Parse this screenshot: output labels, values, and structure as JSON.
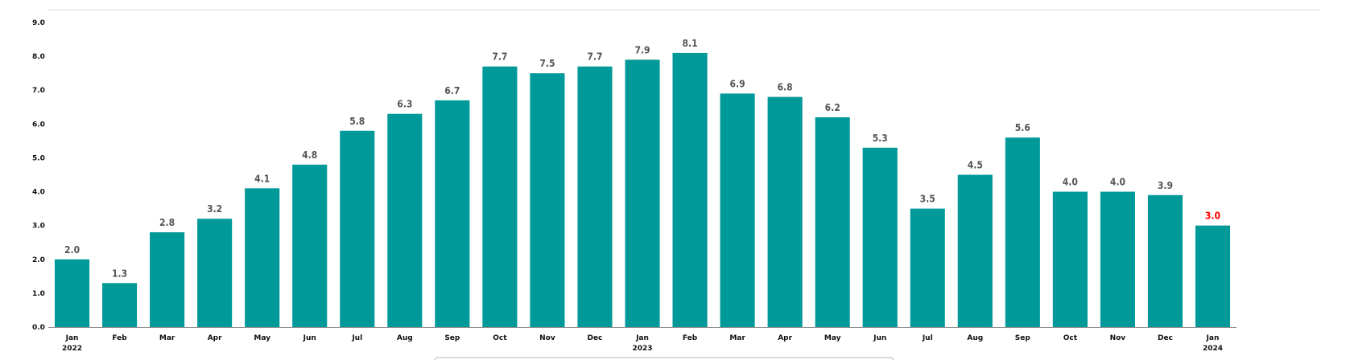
{
  "colors": {
    "bar": "#009999",
    "data_label": "#555555",
    "highlight_label": "#ff0000",
    "axis_line": "#d9d9d9",
    "bottom_axis": "#8c8c8c"
  },
  "chart_data": {
    "type": "bar",
    "title": "",
    "xlabel": "",
    "ylabel": "",
    "ylim": [
      0,
      9
    ],
    "y_ticks": [
      "0.0",
      "1.0",
      "2.0",
      "3.0",
      "4.0",
      "5.0",
      "6.0",
      "7.0",
      "8.0",
      "9.0"
    ],
    "grid": false,
    "categories": [
      "Jan",
      "Feb",
      "Mar",
      "Apr",
      "May",
      "Jun",
      "Jul",
      "Aug",
      "Sep",
      "Oct",
      "Nov",
      "Dec",
      "Jan",
      "Feb",
      "Mar",
      "Apr",
      "May",
      "Jun",
      "Jul",
      "Aug",
      "Sep",
      "Oct",
      "Nov",
      "Dec",
      "Jan"
    ],
    "year_labels": [
      {
        "index": 0,
        "label": "2022"
      },
      {
        "index": 12,
        "label": "2023"
      },
      {
        "index": 24,
        "label": "2024"
      }
    ],
    "values": [
      2.0,
      1.3,
      2.8,
      3.2,
      4.1,
      4.8,
      5.8,
      6.3,
      6.7,
      7.7,
      7.5,
      7.7,
      7.9,
      8.1,
      6.9,
      6.8,
      6.2,
      5.3,
      3.5,
      4.5,
      5.6,
      4.0,
      4.0,
      3.9,
      3.0
    ],
    "data_labels": [
      "2.0",
      "1.3",
      "2.8",
      "3.2",
      "4.1",
      "4.8",
      "5.8",
      "6.3",
      "6.7",
      "7.7",
      "7.5",
      "7.7",
      "7.9",
      "8.1",
      "6.9",
      "6.8",
      "6.2",
      "5.3",
      "3.5",
      "4.5",
      "5.6",
      "4.0",
      "4.0",
      "3.9",
      "3.0"
    ],
    "highlight_index": 24
  }
}
